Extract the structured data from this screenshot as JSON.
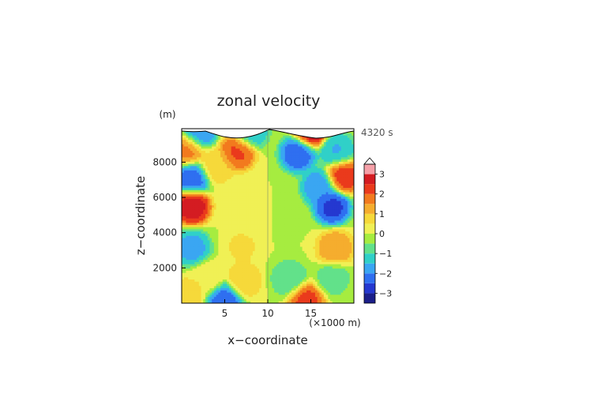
{
  "chart_data": {
    "type": "heatmap",
    "title": "zonal velocity",
    "time_label": "4320 s",
    "xlabel": "x−coordinate",
    "ylabel": "z−coordinate",
    "x_unit": "(×1000 m)",
    "y_unit": "(m)",
    "xlim": [
      0,
      20
    ],
    "ylim": [
      0,
      9900
    ],
    "x_ticks": [
      5,
      10,
      15
    ],
    "y_ticks": [
      2000,
      4000,
      6000,
      8000
    ],
    "colorbar": {
      "levels": [
        -3.5,
        -3,
        -2.5,
        -2,
        -1.5,
        -1,
        -0.5,
        0,
        0.5,
        1,
        1.5,
        2,
        2.5,
        3,
        3.5
      ],
      "tick_values": [
        3,
        2,
        1,
        0,
        -1,
        -2,
        -3
      ],
      "tick_labels": [
        "3",
        "2",
        "1",
        "0",
        "−1",
        "−2",
        "−3"
      ],
      "colors": [
        "#1b1f8a",
        "#2538d0",
        "#2f6ff0",
        "#3aa6f2",
        "#30d0c8",
        "#62e18a",
        "#a6ec40",
        "#f0f055",
        "#f6d93a",
        "#f5ad2e",
        "#f27a1e",
        "#ea3a1c",
        "#d41c22",
        "#f5a0a8",
        "#ffd9da"
      ],
      "extend": "max"
    },
    "series": [
      {
        "name": "",
        "points": [
          {
            "x": 0.6,
            "y": 8700,
            "value": 1.8
          },
          {
            "x": 1.2,
            "y": 7100,
            "value": -2.5
          },
          {
            "x": 1.2,
            "y": 5500,
            "value": 3.0
          },
          {
            "x": 1.2,
            "y": 3150,
            "value": -1.8
          },
          {
            "x": 0.5,
            "y": 400,
            "value": 0.9
          },
          {
            "x": 3.0,
            "y": 1400,
            "value": 0.5
          },
          {
            "x": 4.0,
            "y": 7800,
            "value": 0.9
          },
          {
            "x": 6.5,
            "y": 8600,
            "value": 2.2
          },
          {
            "x": 7.2,
            "y": 1300,
            "value": 0.9
          },
          {
            "x": 7.0,
            "y": 3200,
            "value": 0.6
          },
          {
            "x": 5.0,
            "y": 200,
            "value": -2.5
          },
          {
            "x": 2.0,
            "y": 9700,
            "value": -2.0
          },
          {
            "x": 8.0,
            "y": 9750,
            "value": -1.5
          },
          {
            "x": 13.5,
            "y": 8500,
            "value": -2.5
          },
          {
            "x": 16.0,
            "y": 6600,
            "value": -2.0
          },
          {
            "x": 17.5,
            "y": 5500,
            "value": -2.8
          },
          {
            "x": 18.0,
            "y": 8700,
            "value": -1.6
          },
          {
            "x": 18.8,
            "y": 7200,
            "value": 2.5
          },
          {
            "x": 17.8,
            "y": 3150,
            "value": 1.5
          },
          {
            "x": 12.5,
            "y": 1400,
            "value": -1.0
          },
          {
            "x": 17.5,
            "y": 1400,
            "value": -0.8
          },
          {
            "x": 14.5,
            "y": 200,
            "value": 2.3
          },
          {
            "x": 15.0,
            "y": 9800,
            "value": 3.2
          },
          {
            "x": 12.0,
            "y": 5000,
            "value": -0.3
          },
          {
            "x": 9.0,
            "y": 5000,
            "value": 0.2
          }
        ]
      }
    ]
  }
}
